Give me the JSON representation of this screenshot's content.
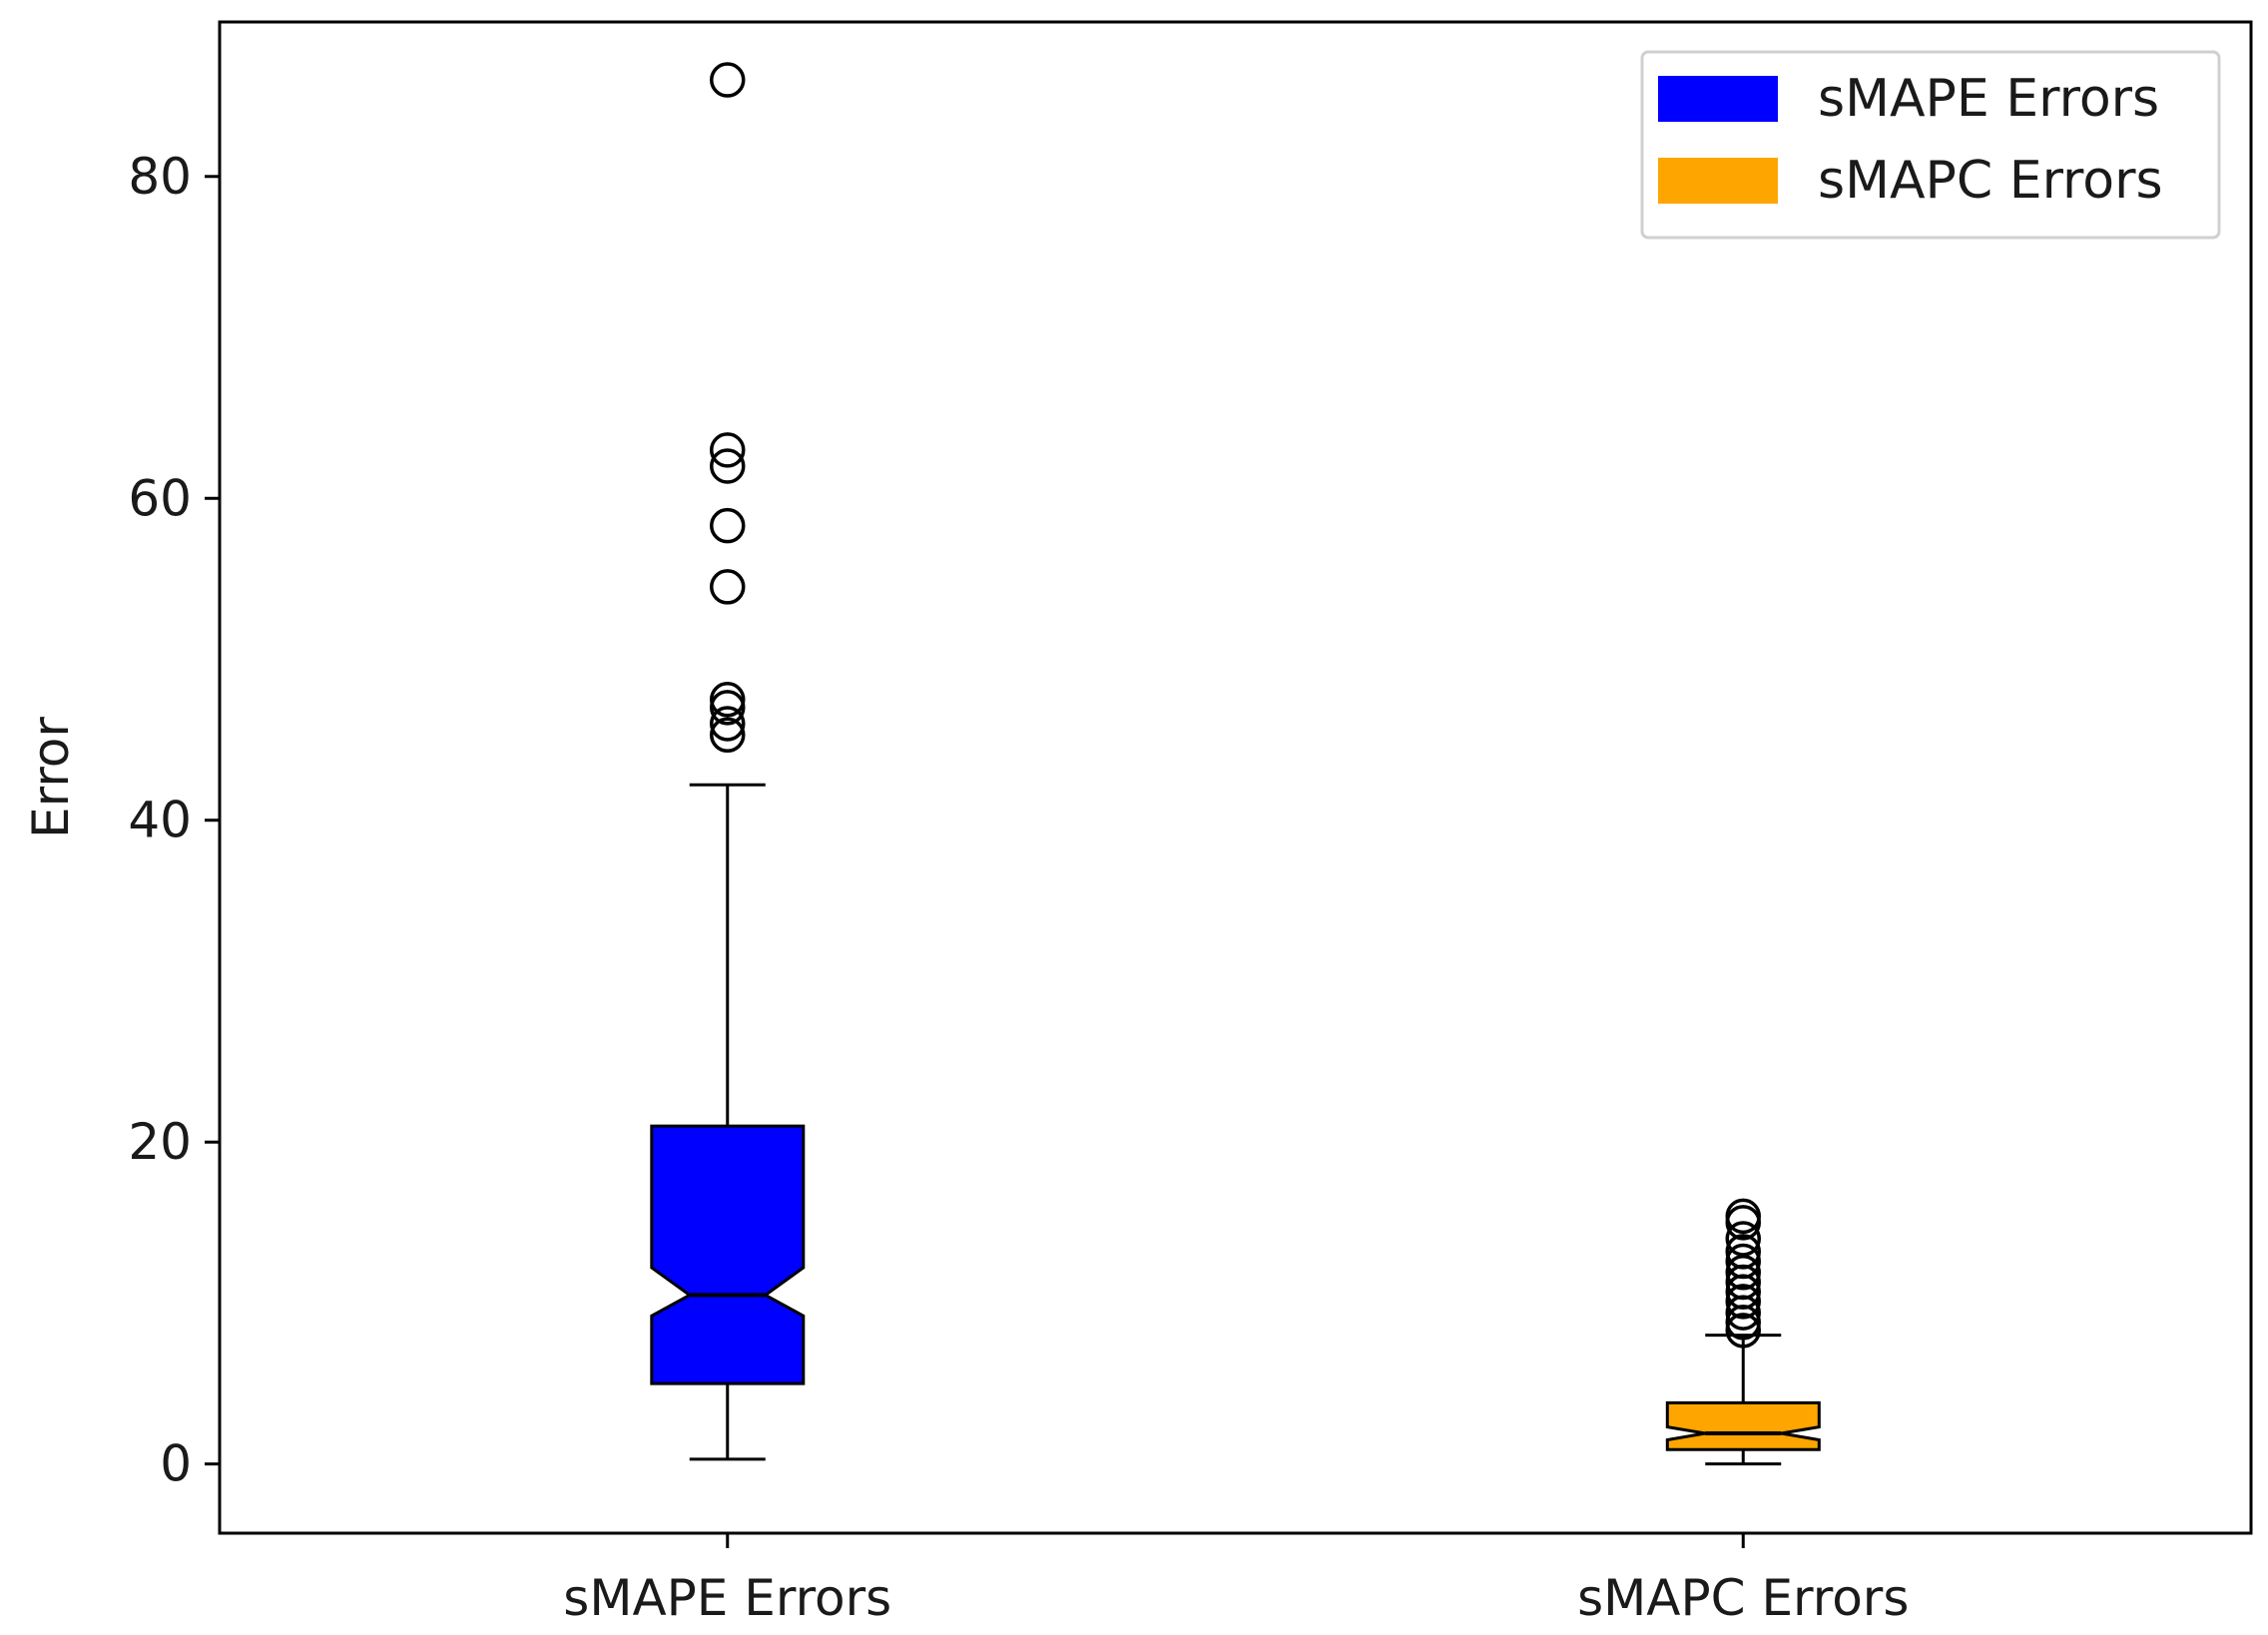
{
  "chart_data": {
    "type": "boxplot",
    "title": "",
    "xlabel": "",
    "ylabel": "Error",
    "ylim": [
      -4.3,
      89.6
    ],
    "yticks": [
      0,
      20,
      40,
      60,
      80
    ],
    "notched": true,
    "grid": false,
    "legend_position": "top-right",
    "categories": [
      "sMAPE Errors",
      "sMAPC Errors"
    ],
    "series": [
      {
        "name": "sMAPE Errors",
        "color": "#0000ff",
        "whisker_low": 0.3,
        "q1": 5.0,
        "median": 10.5,
        "q3": 21.0,
        "whisker_high": 42.2,
        "notch_low": 9.2,
        "notch_high": 12.2,
        "outliers": [
          86.0,
          63.0,
          62.0,
          58.3,
          54.5,
          47.5,
          47.0,
          46.0,
          45.3
        ]
      },
      {
        "name": "sMAPC Errors",
        "color": "#ffa500",
        "whisker_low": 0.0,
        "q1": 0.9,
        "median": 1.9,
        "q3": 3.8,
        "whisker_high": 8.0,
        "notch_low": 1.5,
        "notch_high": 2.3,
        "outliers": [
          8.3,
          8.8,
          9.4,
          10.1,
          10.7,
          11.3,
          11.9,
          12.6,
          13.2,
          14.0,
          15.0,
          15.4
        ]
      }
    ]
  }
}
